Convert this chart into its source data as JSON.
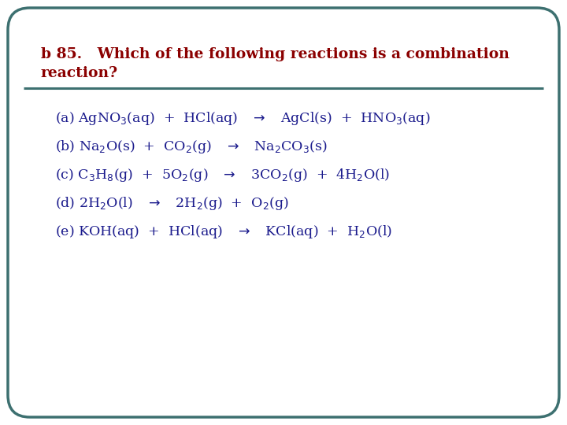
{
  "title_line1": "b 85.   Which of the following reactions is a combination",
  "title_line2": "reaction?",
  "title_color": "#8B0000",
  "body_color": "#1a1a8c",
  "bg_color": "#FFFFFF",
  "border_color": "#3d7070",
  "line_color": "#3d7070",
  "reactions": [
    "(a) AgNO$_{3}$(aq)  +  HCl(aq)   $\\rightarrow$   AgCl(s)  +  HNO$_{3}$(aq)",
    "(b) Na$_{2}$O(s)  +  CO$_{2}$(g)   $\\rightarrow$   Na$_{2}$CO$_{3}$(s)",
    "(c) C$_{3}$H$_{8}$(g)  +  5O$_{2}$(g)   $\\rightarrow$   3CO$_{2}$(g)  +  4H$_{2}$O(l)",
    "(d) 2H$_{2}$O(l)   $\\rightarrow$   2H$_{2}$(g)  +  O$_{2}$(g)",
    "(e) KOH(aq)  +  HCl(aq)   $\\rightarrow$   KCl(aq)  +  H$_{2}$O(l)"
  ],
  "figsize": [
    7.2,
    5.4
  ],
  "dpi": 100
}
